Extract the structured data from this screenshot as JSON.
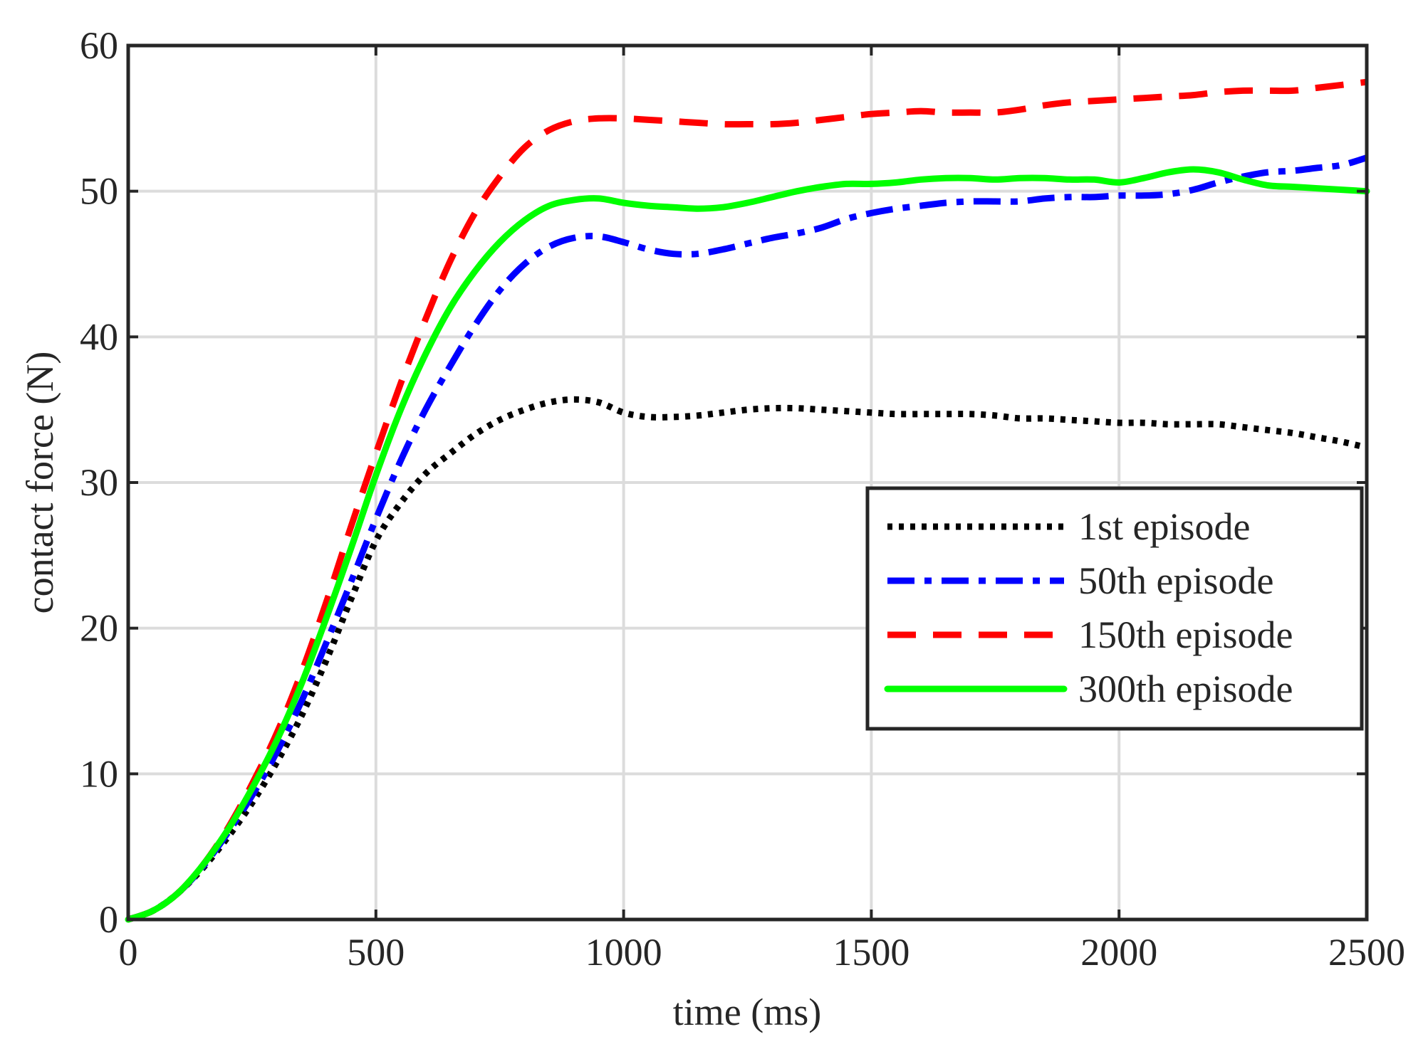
{
  "chart_data": {
    "type": "line",
    "title": "",
    "xlabel": "time (ms)",
    "ylabel": "contact force (N)",
    "xlim": [
      0,
      2500
    ],
    "ylim": [
      0,
      60
    ],
    "xticks": [
      0,
      500,
      1000,
      1500,
      2000,
      2500
    ],
    "yticks": [
      0,
      10,
      20,
      30,
      40,
      50,
      60
    ],
    "grid": true,
    "legend_position": "right-center",
    "series": [
      {
        "name": "1st episode",
        "color": "#000000",
        "style": "dotted",
        "x": [
          0,
          50,
          100,
          150,
          200,
          250,
          300,
          350,
          400,
          450,
          500,
          550,
          600,
          650,
          700,
          750,
          800,
          850,
          900,
          950,
          1000,
          1050,
          1100,
          1150,
          1200,
          1250,
          1300,
          1350,
          1400,
          1450,
          1500,
          1550,
          1600,
          1650,
          1700,
          1750,
          1800,
          1850,
          1900,
          1950,
          2000,
          2050,
          2100,
          2150,
          2200,
          2250,
          2300,
          2350,
          2400,
          2450,
          2500
        ],
        "y": [
          0,
          0.6,
          1.8,
          3.5,
          5.6,
          8.0,
          10.8,
          14.0,
          17.8,
          22.0,
          26.0,
          28.6,
          30.6,
          32.0,
          33.3,
          34.3,
          35.0,
          35.5,
          35.7,
          35.5,
          34.8,
          34.5,
          34.5,
          34.6,
          34.8,
          35.0,
          35.1,
          35.1,
          35.0,
          34.9,
          34.8,
          34.7,
          34.7,
          34.7,
          34.7,
          34.6,
          34.4,
          34.4,
          34.3,
          34.2,
          34.1,
          34.1,
          34.0,
          34.0,
          34.0,
          33.8,
          33.6,
          33.4,
          33.1,
          32.8,
          32.4
        ]
      },
      {
        "name": "50th episode",
        "color": "#0000ff",
        "style": "dashdot",
        "x": [
          0,
          50,
          100,
          150,
          200,
          250,
          300,
          350,
          400,
          450,
          500,
          550,
          600,
          650,
          700,
          750,
          800,
          850,
          900,
          950,
          1000,
          1050,
          1100,
          1150,
          1200,
          1250,
          1300,
          1350,
          1400,
          1450,
          1500,
          1550,
          1600,
          1650,
          1700,
          1750,
          1800,
          1850,
          1900,
          1950,
          2000,
          2050,
          2100,
          2150,
          2200,
          2250,
          2300,
          2350,
          2400,
          2450,
          2500
        ],
        "y": [
          0,
          0.6,
          1.8,
          3.6,
          5.9,
          8.5,
          11.5,
          15.0,
          19.0,
          23.2,
          27.5,
          31.5,
          35.0,
          38.0,
          40.8,
          43.2,
          45.0,
          46.2,
          46.8,
          46.9,
          46.5,
          46.0,
          45.7,
          45.7,
          46.0,
          46.4,
          46.8,
          47.1,
          47.5,
          48.1,
          48.5,
          48.8,
          49.0,
          49.2,
          49.3,
          49.3,
          49.3,
          49.5,
          49.6,
          49.6,
          49.7,
          49.7,
          49.8,
          50.1,
          50.6,
          51.0,
          51.3,
          51.4,
          51.6,
          51.8,
          52.3
        ]
      },
      {
        "name": "150th episode",
        "color": "#ff0000",
        "style": "dashed",
        "x": [
          0,
          50,
          100,
          150,
          200,
          250,
          300,
          350,
          400,
          450,
          500,
          550,
          600,
          650,
          700,
          750,
          800,
          850,
          900,
          950,
          1000,
          1050,
          1100,
          1150,
          1200,
          1250,
          1300,
          1350,
          1400,
          1450,
          1500,
          1550,
          1600,
          1650,
          1700,
          1750,
          1800,
          1850,
          1900,
          1950,
          2000,
          2050,
          2100,
          2150,
          2200,
          2250,
          2300,
          2350,
          2400,
          2450,
          2500
        ],
        "y": [
          0,
          0.6,
          1.8,
          3.7,
          6.2,
          9.3,
          12.8,
          17.0,
          21.8,
          27.0,
          32.0,
          36.8,
          41.2,
          45.2,
          48.5,
          51.0,
          53.0,
          54.2,
          54.8,
          55.0,
          55.0,
          54.9,
          54.8,
          54.7,
          54.6,
          54.6,
          54.6,
          54.7,
          54.9,
          55.1,
          55.3,
          55.4,
          55.5,
          55.4,
          55.4,
          55.4,
          55.6,
          55.9,
          56.1,
          56.2,
          56.3,
          56.4,
          56.5,
          56.6,
          56.8,
          56.9,
          56.9,
          56.9,
          57.1,
          57.3,
          57.5
        ]
      },
      {
        "name": "300th episode",
        "color": "#00ff00",
        "style": "solid",
        "x": [
          0,
          50,
          100,
          150,
          200,
          250,
          300,
          350,
          400,
          450,
          500,
          550,
          600,
          650,
          700,
          750,
          800,
          850,
          900,
          950,
          1000,
          1050,
          1100,
          1150,
          1200,
          1250,
          1300,
          1350,
          1400,
          1450,
          1500,
          1550,
          1600,
          1650,
          1700,
          1750,
          1800,
          1850,
          1900,
          1950,
          2000,
          2050,
          2100,
          2150,
          2200,
          2250,
          2300,
          2350,
          2400,
          2450,
          2500
        ],
        "y": [
          0,
          0.6,
          1.8,
          3.7,
          6.1,
          9.0,
          12.3,
          16.2,
          20.7,
          25.5,
          30.5,
          35.0,
          38.8,
          42.0,
          44.5,
          46.5,
          48.0,
          49.0,
          49.4,
          49.5,
          49.2,
          49.0,
          48.9,
          48.8,
          48.9,
          49.2,
          49.6,
          50.0,
          50.3,
          50.5,
          50.5,
          50.6,
          50.8,
          50.9,
          50.9,
          50.8,
          50.9,
          50.9,
          50.8,
          50.8,
          50.6,
          50.9,
          51.3,
          51.5,
          51.3,
          50.8,
          50.4,
          50.3,
          50.2,
          50.1,
          50.0
        ]
      }
    ]
  }
}
